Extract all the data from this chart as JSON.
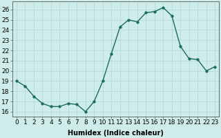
{
  "x": [
    0,
    1,
    2,
    3,
    4,
    5,
    6,
    7,
    8,
    9,
    10,
    11,
    12,
    13,
    14,
    15,
    16,
    17,
    18,
    19,
    20,
    21,
    22,
    23
  ],
  "y": [
    19,
    18.5,
    17.5,
    16.8,
    16.5,
    16.5,
    16.8,
    16.7,
    16.0,
    17.0,
    19.0,
    21.7,
    24.3,
    25.0,
    24.8,
    25.7,
    25.8,
    26.2,
    25.4,
    22.4,
    21.2,
    21.1,
    20.0,
    20.4
  ],
  "xlabel": "Humidex (Indice chaleur)",
  "xlim": [
    -0.5,
    23.5
  ],
  "ylim": [
    15.5,
    26.8
  ],
  "yticks": [
    16,
    17,
    18,
    19,
    20,
    21,
    22,
    23,
    24,
    25,
    26
  ],
  "xticks": [
    0,
    1,
    2,
    3,
    4,
    5,
    6,
    7,
    8,
    9,
    10,
    11,
    12,
    13,
    14,
    15,
    16,
    17,
    18,
    19,
    20,
    21,
    22,
    23
  ],
  "xtick_labels": [
    "0",
    "1",
    "2",
    "3",
    "4",
    "5",
    "6",
    "7",
    "8",
    "9",
    "10",
    "11",
    "12",
    "13",
    "14",
    "15",
    "16",
    "17",
    "18",
    "19",
    "20",
    "21",
    "22",
    "23"
  ],
  "line_color": "#1a6b5a",
  "marker_size": 2.5,
  "bg_color": "#ceecea",
  "grid_color": "#aed8d4",
  "xlabel_fontsize": 7,
  "tick_fontsize": 6.5,
  "line_width": 1.0
}
